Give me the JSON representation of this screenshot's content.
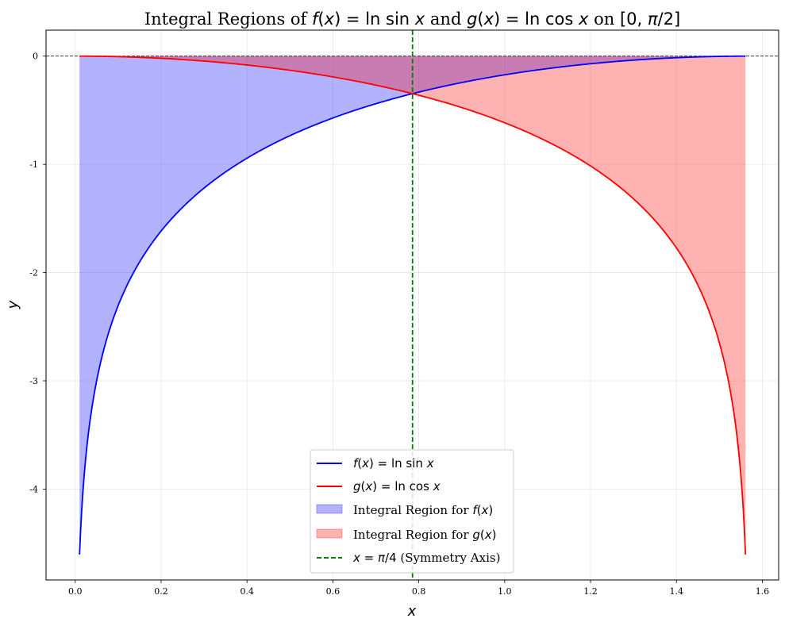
{
  "chart_data": {
    "type": "line",
    "title": "Integral Regions of f(x) = ln sin x and g(x) = ln cos x on [0, π/2]",
    "xlabel": "x",
    "ylabel": "y",
    "xlim": [
      -0.068,
      1.638
    ],
    "ylim": [
      -4.84,
      0.24
    ],
    "xticks": [
      0.0,
      0.2,
      0.4,
      0.6,
      0.8,
      1.0,
      1.2,
      1.4,
      1.6
    ],
    "xtick_labels": [
      "0.0",
      "0.2",
      "0.4",
      "0.6",
      "0.8",
      "1.0",
      "1.2",
      "1.4",
      "1.6"
    ],
    "yticks": [
      0,
      -1,
      -2,
      -3,
      -4
    ],
    "ytick_labels": [
      "0",
      "-1",
      "-2",
      "-3",
      "-4"
    ],
    "grid": true,
    "x_range": [
      0.01,
      1.5608
    ],
    "series": [
      {
        "name": "f(x) = ln sin x",
        "color": "#0000ff",
        "x": [
          0.01,
          0.02,
          0.05,
          0.1,
          0.2,
          0.3,
          0.4,
          0.5,
          0.6,
          0.7,
          0.7854,
          0.9,
          1.0,
          1.1,
          1.2,
          1.3,
          1.4,
          1.5,
          1.5608
        ],
        "y": [
          -4.605,
          -3.912,
          -2.996,
          -2.304,
          -1.616,
          -1.218,
          -0.941,
          -0.735,
          -0.57,
          -0.487,
          -0.347,
          -0.247,
          -0.173,
          -0.114,
          -0.07,
          -0.036,
          -0.014,
          -0.002,
          0.0
        ]
      },
      {
        "name": "g(x) = ln cos x",
        "color": "#ff0000",
        "x": [
          0.01,
          0.1,
          0.2,
          0.3,
          0.4,
          0.5,
          0.6,
          0.7,
          0.7854,
          0.9,
          1.0,
          1.1,
          1.2,
          1.3,
          1.4,
          1.5,
          1.52,
          1.55,
          1.5608
        ],
        "y": [
          0.0,
          -0.005,
          -0.02,
          -0.046,
          -0.083,
          -0.131,
          -0.192,
          -0.268,
          -0.347,
          -0.48,
          -0.616,
          -0.792,
          -1.015,
          -1.31,
          -1.758,
          -2.646,
          -2.962,
          -3.825,
          -4.605
        ]
      }
    ],
    "fills": [
      {
        "name": "Integral Region for f(x)",
        "color": "#0000ff",
        "alpha": 0.3
      },
      {
        "name": "Integral Region for g(x)",
        "color": "#ff0000",
        "alpha": 0.3
      }
    ],
    "reference_lines": [
      {
        "type": "vertical",
        "x": 0.7854,
        "color": "#008000",
        "style": "dashed",
        "name": "x = π/4 (Symmetry Axis)"
      },
      {
        "type": "horizontal",
        "y": 0,
        "color": "#000000",
        "style": "dashed"
      }
    ],
    "legend": {
      "position": "bottom-center",
      "entries": [
        {
          "label": "f(x) = ln sin x",
          "kind": "line",
          "color": "#0000ff"
        },
        {
          "label": "g(x) = ln cos x",
          "kind": "line",
          "color": "#ff0000"
        },
        {
          "label": "Integral Region for f(x)",
          "kind": "patch",
          "color": "#0000ff"
        },
        {
          "label": "Integral Region for g(x)",
          "kind": "patch",
          "color": "#ff0000"
        },
        {
          "label": "x = π/4 (Symmetry Axis)",
          "kind": "dashed-line",
          "color": "#008000"
        }
      ]
    }
  }
}
